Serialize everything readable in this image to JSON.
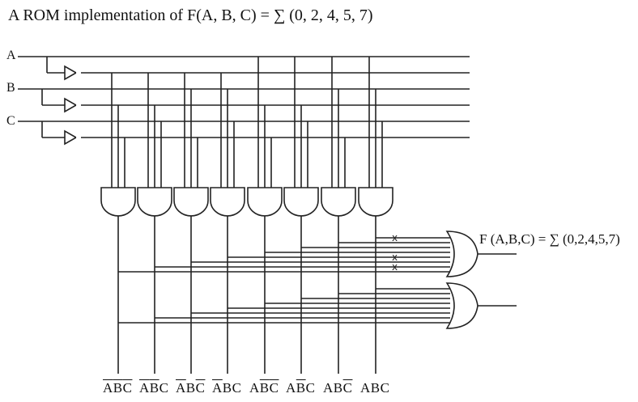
{
  "title": "A ROM implementation of F(A, B, C) = ∑ (0, 2, 4, 5, 7)",
  "inputs": [
    "A",
    "B",
    "C"
  ],
  "output_label": "F (A,B,C) = ∑ (0,2,4,5,7)",
  "minterms": [
    {
      "text": "ABC",
      "bars": [
        true,
        true,
        true
      ]
    },
    {
      "text": "ABC",
      "bars": [
        true,
        true,
        false
      ]
    },
    {
      "text": "ABC",
      "bars": [
        true,
        false,
        true
      ]
    },
    {
      "text": "ABC",
      "bars": [
        true,
        false,
        false
      ]
    },
    {
      "text": "ABC",
      "bars": [
        false,
        true,
        true
      ]
    },
    {
      "text": "ABC",
      "bars": [
        false,
        true,
        false
      ]
    },
    {
      "text": "ABC",
      "bars": [
        false,
        false,
        true
      ]
    },
    {
      "text": "ABC",
      "bars": [
        false,
        false,
        false
      ]
    }
  ],
  "fuse_mark": "x"
}
